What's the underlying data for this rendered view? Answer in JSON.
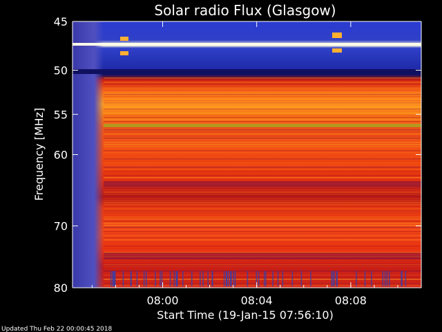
{
  "chart_data": {
    "type": "heatmap",
    "title": "Solar radio Flux (Glasgow)",
    "ylabel": "Frequency [MHz]",
    "xlabel": "Start Time (19-Jan-15 07:56:10)",
    "y_scale": "log",
    "ylim": [
      45,
      80
    ],
    "y_inverted": true,
    "y_ticks": [
      {
        "value": 45,
        "label": "45"
      },
      {
        "value": 50,
        "label": "50"
      },
      {
        "value": 55,
        "label": "55"
      },
      {
        "value": 60,
        "label": "60"
      },
      {
        "value": 70,
        "label": "70"
      },
      {
        "value": 80,
        "label": "80"
      }
    ],
    "xlim": [
      "07:56:10",
      "08:11:00"
    ],
    "x_ticks": [
      {
        "value": "08:00",
        "label": "08:00"
      },
      {
        "value": "08:04",
        "label": "08:04"
      },
      {
        "value": "08:08",
        "label": "08:08"
      }
    ],
    "colormap": [
      "#101060",
      "#2030b0",
      "#5050d0",
      "#903070",
      "#c01818",
      "#e83010",
      "#f86818",
      "#ff9a20",
      "#ffc040",
      "#ffffe8"
    ]
  },
  "footer": "Updated Thu Feb 22 00:00:45 2018"
}
